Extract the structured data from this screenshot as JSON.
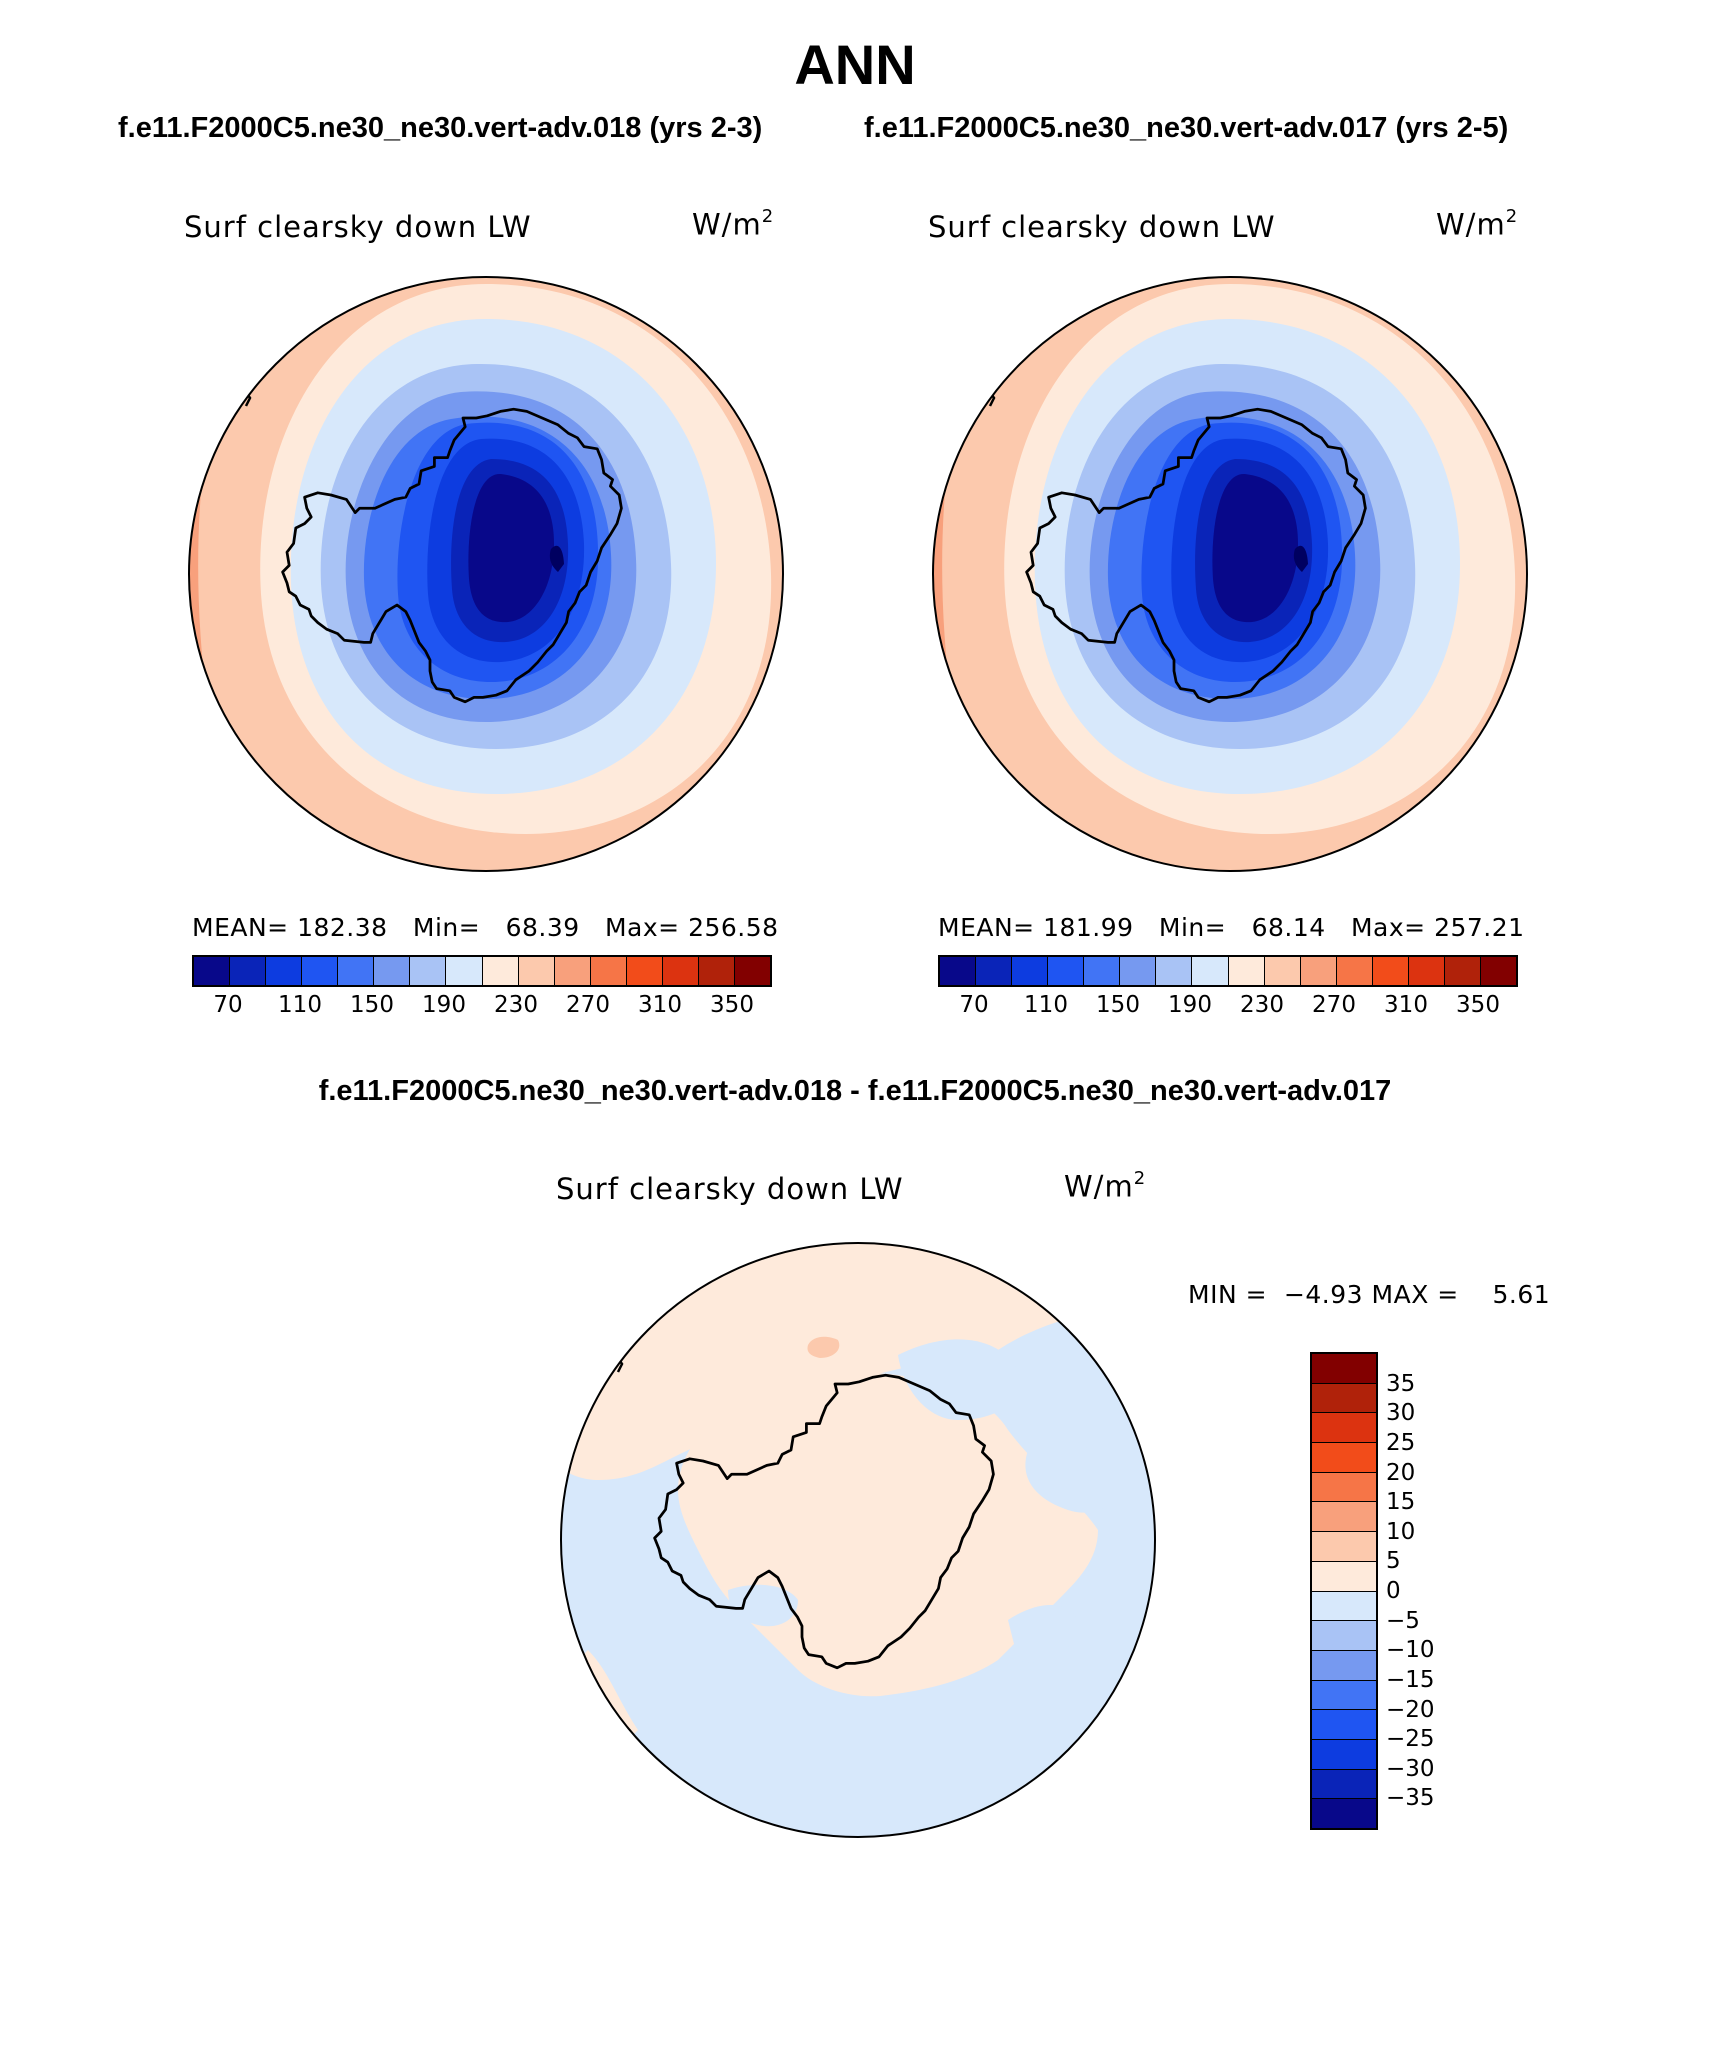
{
  "title": "ANN",
  "case1_label": "f.e11.F2000C5.ne30_ne30.vert-adv.018 (yrs 2-3)",
  "case2_label": "f.e11.F2000C5.ne30_ne30.vert-adv.017 (yrs 2-5)",
  "diff_label": "f.e11.F2000C5.ne30_ne30.vert-adv.018 - f.e11.F2000C5.ne30_ne30.vert-adv.017",
  "panels": {
    "left": {
      "variable": "Surf clearsky down LW",
      "units": "W/m",
      "units_exp": "2",
      "mean_label": "MEAN=",
      "mean": "182.38",
      "min_label": "Min=",
      "min": "68.39",
      "max_label": "Max=",
      "max": "256.58"
    },
    "right": {
      "variable": "Surf clearsky down LW",
      "units": "W/m",
      "units_exp": "2",
      "mean_label": "MEAN=",
      "mean": "181.99",
      "min_label": "Min=",
      "min": "68.14",
      "max_label": "Max=",
      "max": "257.21"
    },
    "diff": {
      "variable": "Surf clearsky down LW",
      "units": "W/m",
      "units_exp": "2",
      "min_label": "MIN =",
      "min": "−4.93",
      "max_label": "MAX =",
      "max": "5.61"
    }
  },
  "colorbar_main": {
    "colors": [
      "#08088a",
      "#0a24b8",
      "#0d3ce0",
      "#1f55f2",
      "#4174f5",
      "#7699f0",
      "#a9c3f5",
      "#d7e8fb",
      "#feeadb",
      "#fcc9ad",
      "#f8a07c",
      "#f67547",
      "#f24c1a",
      "#dc3310",
      "#b0220a",
      "#820000"
    ],
    "labels": [
      "70",
      "110",
      "150",
      "190",
      "230",
      "270",
      "310",
      "350"
    ]
  },
  "colorbar_diff": {
    "colors": [
      "#820000",
      "#b0220a",
      "#dc3310",
      "#f24c1a",
      "#f67547",
      "#f8a07c",
      "#fcc9ad",
      "#feeadb",
      "#d7e8fb",
      "#a9c3f5",
      "#7699f0",
      "#4174f5",
      "#1f55f2",
      "#0d3ce0",
      "#0a24b8",
      "#08088a"
    ],
    "labels": [
      "35",
      "30",
      "25",
      "20",
      "15",
      "10",
      "5",
      "0",
      "−5",
      "−10",
      "−15",
      "−20",
      "−25",
      "−30",
      "−35"
    ]
  }
}
